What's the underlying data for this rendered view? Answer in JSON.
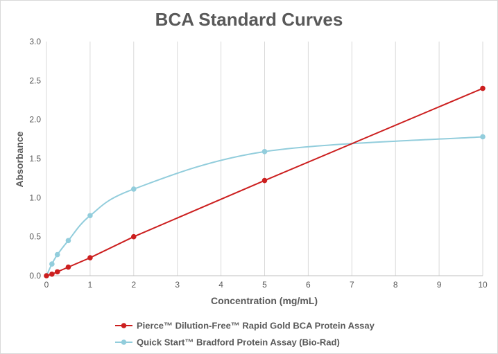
{
  "chart_data": {
    "type": "line",
    "title": "BCA Standard Curves",
    "xlabel": "Concentration (mg/mL)",
    "ylabel": "Absorbance",
    "xlim": [
      0,
      10
    ],
    "ylim": [
      0,
      3.0
    ],
    "x_ticks": [
      "0",
      "1",
      "2",
      "3",
      "4",
      "5",
      "6",
      "7",
      "8",
      "9",
      "10"
    ],
    "y_ticks": [
      "0.0",
      "0.5",
      "1.0",
      "1.5",
      "2.0",
      "2.5",
      "3.0"
    ],
    "x_tick_values": [
      0,
      1,
      2,
      3,
      4,
      5,
      6,
      7,
      8,
      9,
      10
    ],
    "y_tick_values": [
      0,
      0.5,
      1.0,
      1.5,
      2.0,
      2.5,
      3.0
    ],
    "grid": "vertical-only",
    "legend_position": "bottom",
    "series": [
      {
        "name": "Pierce™ Dilution-Free™ Rapid Gold BCA Protein Assay",
        "color": "#cc1f1f",
        "line": "straight",
        "x": [
          0,
          0.125,
          0.25,
          0.5,
          1,
          2,
          5,
          10
        ],
        "y": [
          0,
          0.02,
          0.05,
          0.11,
          0.23,
          0.5,
          1.22,
          2.4
        ]
      },
      {
        "name": "Quick Start™ Bradford Protein Assay (Bio-Rad)",
        "color": "#92cddc",
        "line": "smooth",
        "x": [
          0,
          0.125,
          0.25,
          0.5,
          1,
          2,
          5,
          10
        ],
        "y": [
          0,
          0.15,
          0.27,
          0.45,
          0.77,
          1.11,
          1.59,
          1.78
        ]
      }
    ]
  }
}
